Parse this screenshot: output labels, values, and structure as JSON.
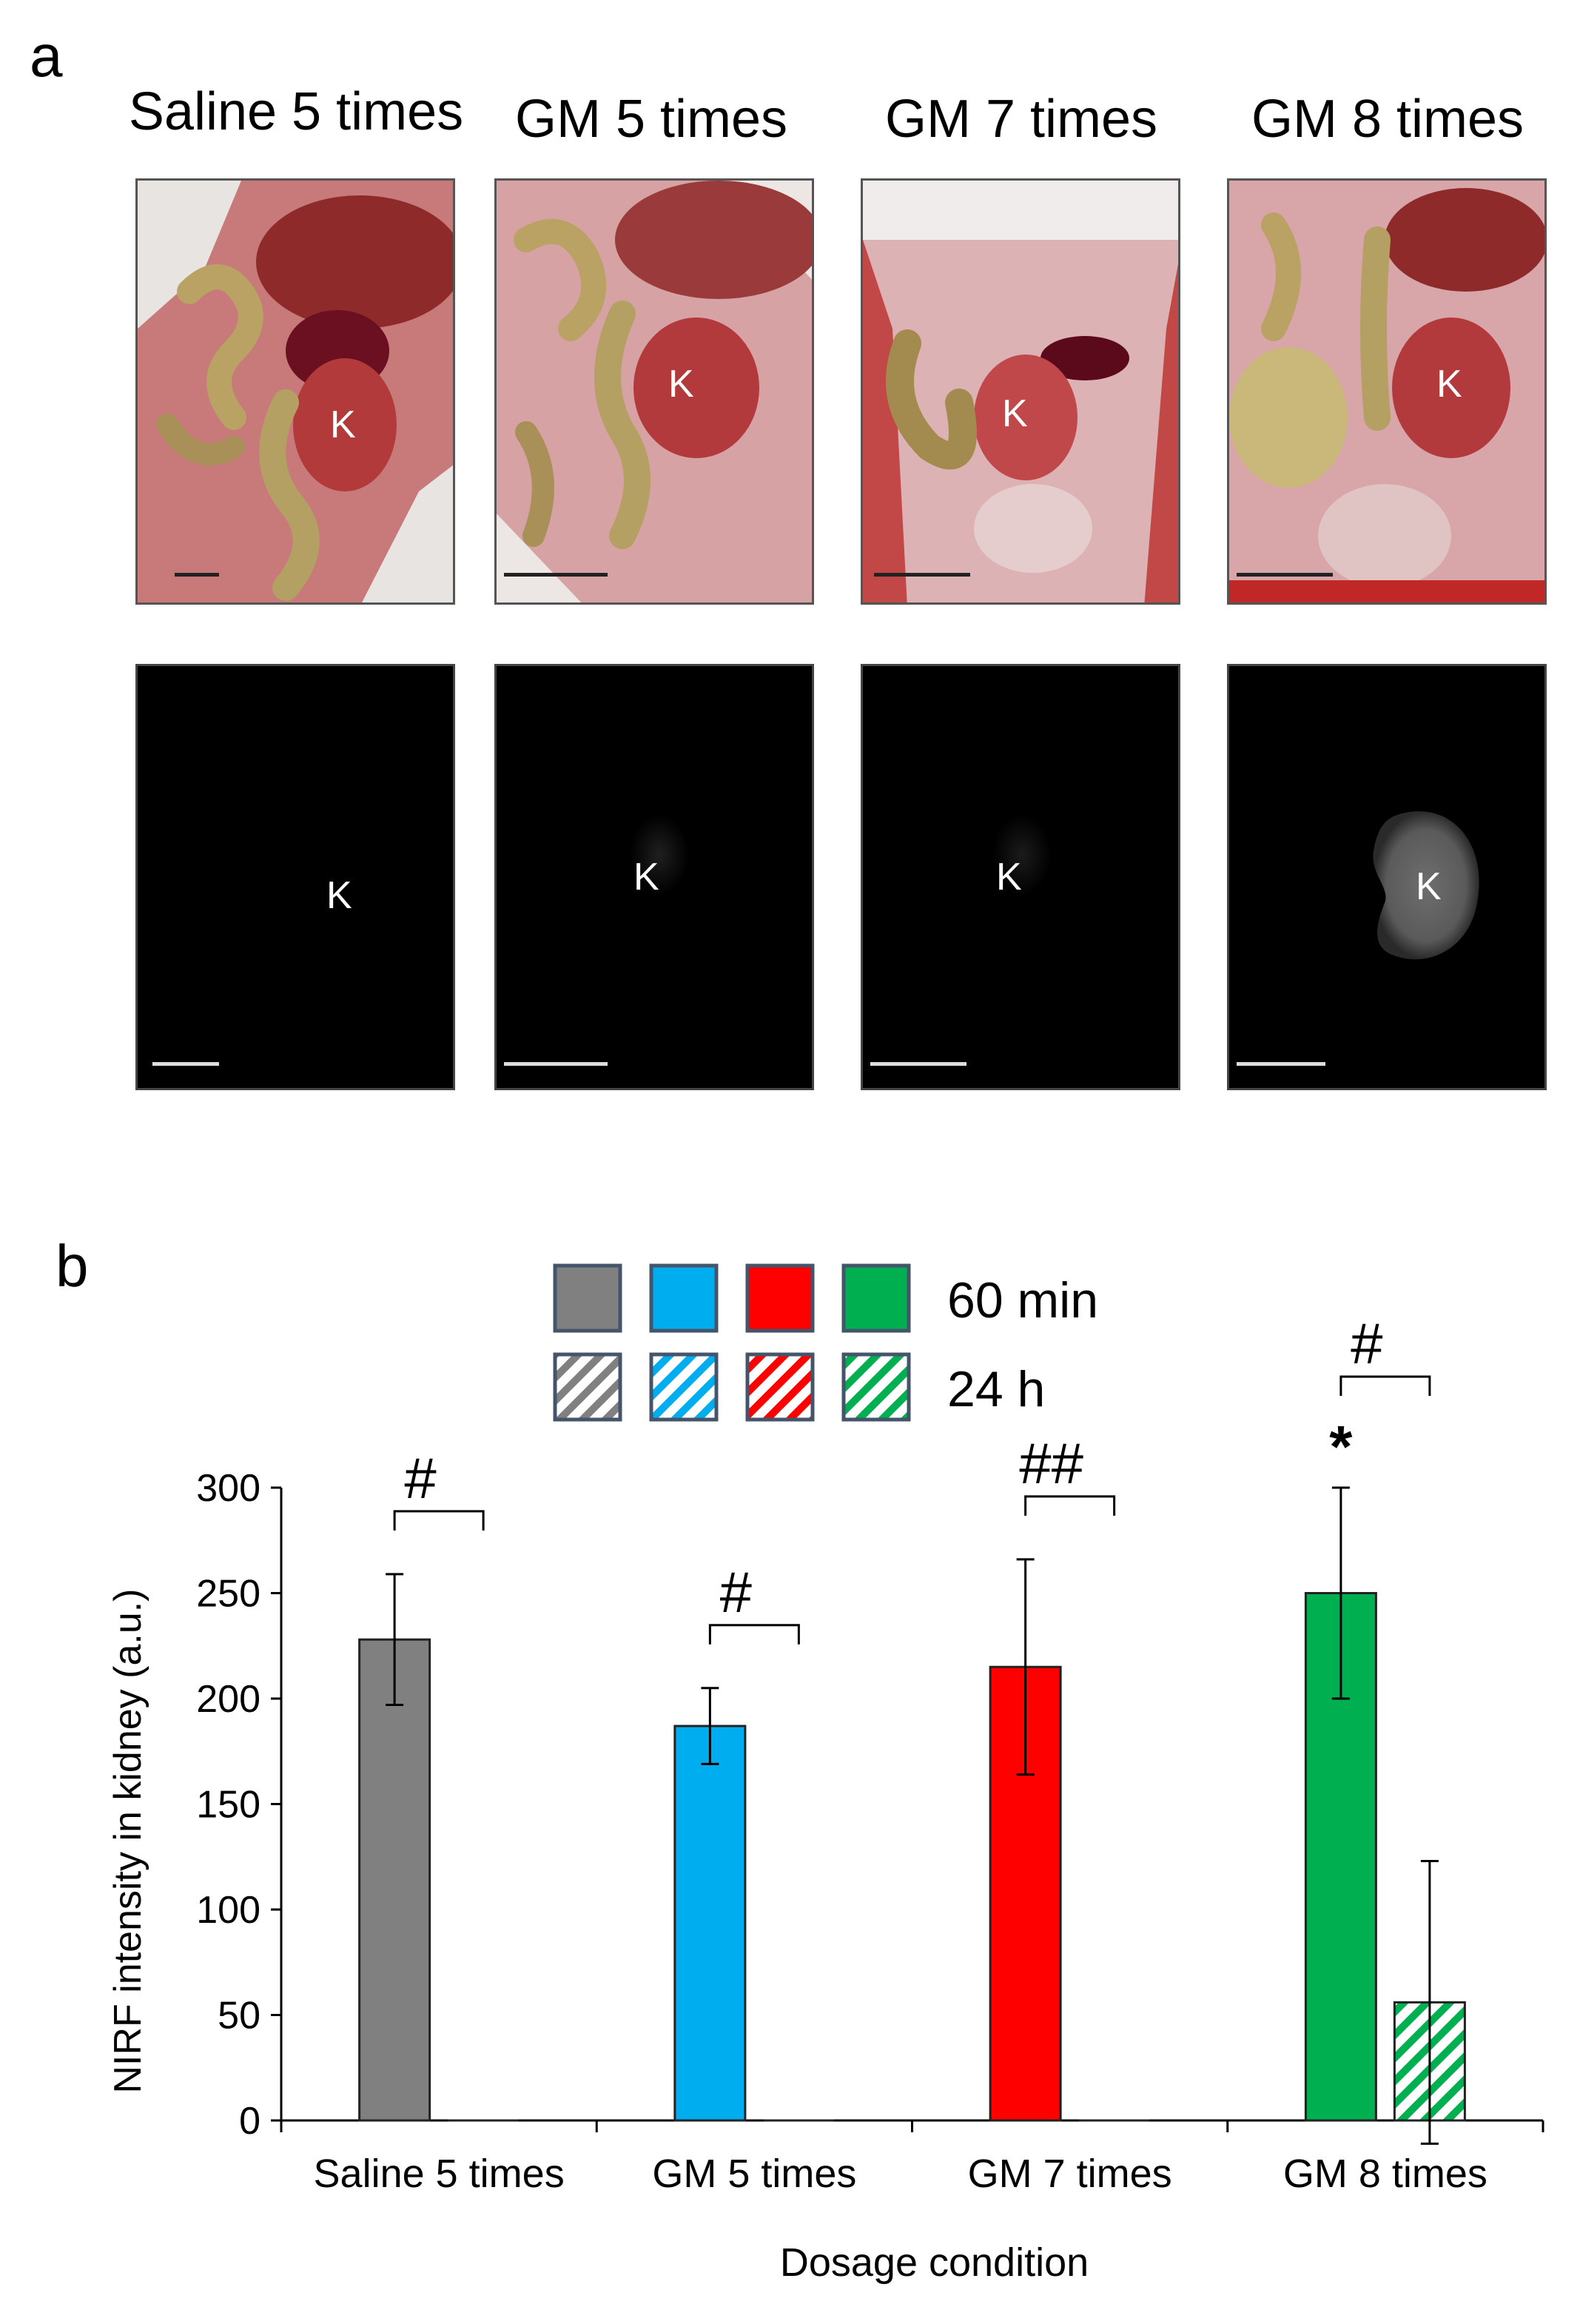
{
  "panel_a": {
    "letter": "a",
    "columns": [
      {
        "title": "Saline 5 times",
        "organ_label": "K"
      },
      {
        "title": "GM 5 times",
        "organ_label": "K"
      },
      {
        "title": "GM 7 times",
        "organ_label": "K"
      },
      {
        "title": "GM 8 times",
        "organ_label": "K"
      }
    ]
  },
  "panel_b": {
    "letter": "b",
    "legend": {
      "solid_label": "60 min",
      "hatched_label": "24 h"
    }
  },
  "colors": {
    "saline": "#808080",
    "gm5": "#00aeef",
    "gm7": "#ff0000",
    "gm8": "#00b050",
    "legend_border": "#44546a"
  },
  "chart_data": {
    "type": "bar",
    "xlabel": "Dosage condition",
    "ylabel": "NIRF intensity in kidney (a.u.)",
    "ylim": [
      0,
      300
    ],
    "yticks": [
      0,
      50,
      100,
      150,
      200,
      250,
      300
    ],
    "categories": [
      "Saline 5 times",
      "GM 5 times",
      "GM 7 times",
      "GM 8 times"
    ],
    "series": [
      {
        "name": "60 min",
        "values": [
          228,
          187,
          215,
          250
        ],
        "errors": [
          31,
          18,
          51,
          50
        ]
      },
      {
        "name": "24 h",
        "values": [
          0,
          0,
          0,
          56
        ],
        "errors": [
          0,
          0,
          0,
          67
        ]
      }
    ],
    "annotations": [
      {
        "text": "#",
        "category": 0
      },
      {
        "text": "#",
        "category": 1
      },
      {
        "text": "##",
        "category": 2
      },
      {
        "text": "#",
        "category": 3
      },
      {
        "text": "*",
        "category": 3
      }
    ]
  }
}
